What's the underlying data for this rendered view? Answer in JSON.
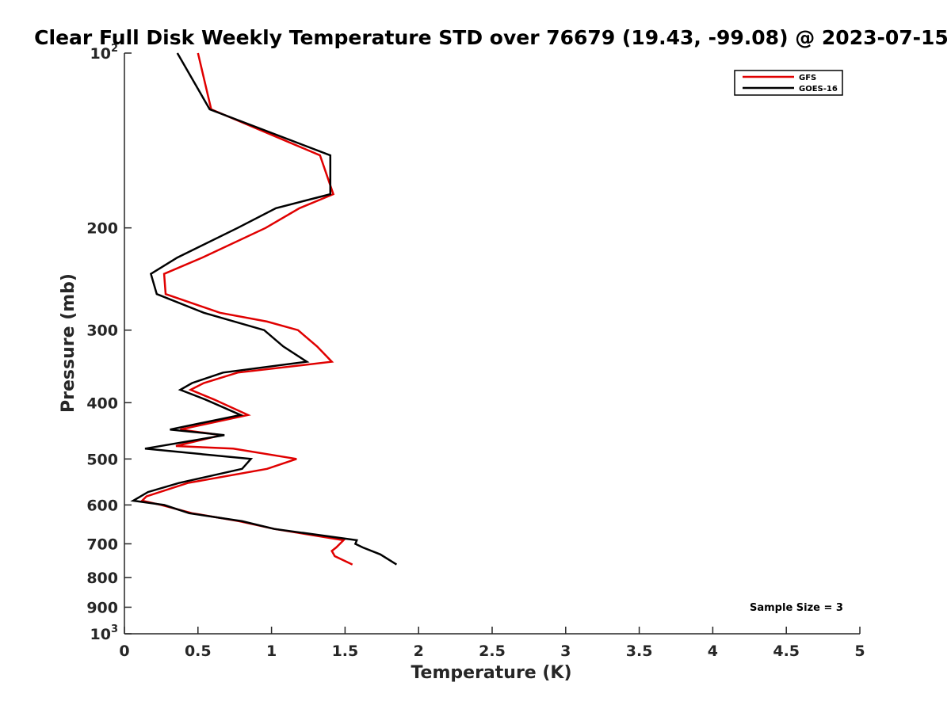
{
  "chart_data": {
    "type": "line",
    "title": "Clear Full Disk Weekly Temperature STD over 76679 (19.43, -99.08) @ 2023-07-15",
    "xlabel": "Temperature (K)",
    "ylabel": "Pressure (mb)",
    "xlim": [
      0,
      5
    ],
    "ylim": [
      100,
      1000
    ],
    "y_scale": "log",
    "y_reversed": true,
    "grid": false,
    "legend_position": "top-right",
    "x_ticks": [
      "0",
      "0.5",
      "1",
      "1.5",
      "2",
      "2.5",
      "3",
      "3.5",
      "4",
      "4.5",
      "5"
    ],
    "y_ticks": [
      {
        "value": 100,
        "label": "10",
        "sup": "2"
      },
      {
        "value": 200,
        "label": "200",
        "sup": ""
      },
      {
        "value": 300,
        "label": "300",
        "sup": ""
      },
      {
        "value": 400,
        "label": "400",
        "sup": ""
      },
      {
        "value": 500,
        "label": "500",
        "sup": ""
      },
      {
        "value": 600,
        "label": "600",
        "sup": ""
      },
      {
        "value": 700,
        "label": "700",
        "sup": ""
      },
      {
        "value": 800,
        "label": "800",
        "sup": ""
      },
      {
        "value": 900,
        "label": "900",
        "sup": ""
      },
      {
        "value": 1000,
        "label": "10",
        "sup": "3"
      }
    ],
    "series": [
      {
        "name": "GFS",
        "color": "#e00000",
        "points": [
          [
            0.5,
            100
          ],
          [
            0.59,
            125
          ],
          [
            1.33,
            150
          ],
          [
            1.42,
            175
          ],
          [
            1.19,
            185
          ],
          [
            0.96,
            200
          ],
          [
            0.53,
            225
          ],
          [
            0.27,
            240
          ],
          [
            0.28,
            260
          ],
          [
            0.65,
            280
          ],
          [
            0.97,
            290
          ],
          [
            1.18,
            300
          ],
          [
            1.31,
            320
          ],
          [
            1.41,
            340
          ],
          [
            0.77,
            355
          ],
          [
            0.54,
            370
          ],
          [
            0.45,
            380
          ],
          [
            0.61,
            395
          ],
          [
            0.84,
            420
          ],
          [
            0.38,
            445
          ],
          [
            0.66,
            455
          ],
          [
            0.35,
            475
          ],
          [
            0.74,
            480
          ],
          [
            1.17,
            500
          ],
          [
            0.97,
            520
          ],
          [
            0.43,
            550
          ],
          [
            0.15,
            580
          ],
          [
            0.12,
            590
          ],
          [
            0.25,
            600
          ],
          [
            0.46,
            620
          ],
          [
            0.78,
            640
          ],
          [
            1.02,
            660
          ],
          [
            1.49,
            690
          ],
          [
            1.44,
            710
          ],
          [
            1.41,
            720
          ],
          [
            1.43,
            735
          ],
          [
            1.55,
            760
          ]
        ]
      },
      {
        "name": "GOES-16",
        "color": "#000000",
        "points": [
          [
            0.36,
            100
          ],
          [
            0.58,
            125
          ],
          [
            1.4,
            150
          ],
          [
            1.4,
            175
          ],
          [
            1.03,
            185
          ],
          [
            0.77,
            200
          ],
          [
            0.36,
            225
          ],
          [
            0.18,
            240
          ],
          [
            0.22,
            260
          ],
          [
            0.54,
            280
          ],
          [
            0.95,
            300
          ],
          [
            1.08,
            320
          ],
          [
            1.24,
            340
          ],
          [
            0.67,
            355
          ],
          [
            0.46,
            370
          ],
          [
            0.38,
            380
          ],
          [
            0.55,
            395
          ],
          [
            0.79,
            420
          ],
          [
            0.31,
            445
          ],
          [
            0.68,
            455
          ],
          [
            0.14,
            480
          ],
          [
            0.86,
            500
          ],
          [
            0.8,
            520
          ],
          [
            0.37,
            550
          ],
          [
            0.16,
            570
          ],
          [
            0.06,
            590
          ],
          [
            0.27,
            600
          ],
          [
            0.44,
            620
          ],
          [
            0.8,
            640
          ],
          [
            1.02,
            660
          ],
          [
            1.58,
            690
          ],
          [
            1.57,
            700
          ],
          [
            1.62,
            710
          ],
          [
            1.74,
            730
          ],
          [
            1.85,
            760
          ]
        ]
      }
    ],
    "legend": {
      "entries": [
        "GFS",
        "GOES-16"
      ]
    },
    "annotation": "Sample Size = 3"
  }
}
